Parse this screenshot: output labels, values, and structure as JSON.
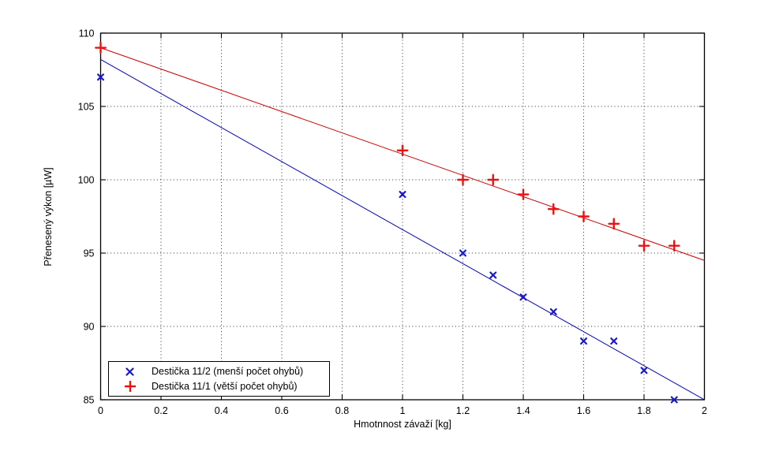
{
  "chart_data": {
    "type": "scatter",
    "title": "",
    "xlabel": "Hmotnnost závaží [kg]",
    "ylabel": "Přenesený výkon [µW]",
    "xlim": [
      0,
      2
    ],
    "ylim": [
      85,
      110
    ],
    "xticks": [
      0,
      0.2,
      0.4,
      0.6,
      0.8,
      1,
      1.2,
      1.4,
      1.6,
      1.8,
      2
    ],
    "xtick_labels": [
      "0",
      "0.2",
      "0.4",
      "0.6",
      "0.8",
      "1",
      "1.2",
      "1.4",
      "1.6",
      "1.8",
      "2"
    ],
    "yticks": [
      85,
      90,
      95,
      100,
      105,
      110
    ],
    "ytick_labels": [
      "85",
      "90",
      "95",
      "100",
      "105",
      "110"
    ],
    "grid": true,
    "grid_style": "dotted",
    "grid_color": "#2b2b2b",
    "axis_color": "#000000",
    "legend_position": "bottom-left",
    "series": [
      {
        "name": "Destička 11/2 (menší počet ohybů)",
        "marker": "x",
        "color": "#1a1acc",
        "line_color": "#0000bb",
        "x": [
          0,
          1,
          1.2,
          1.3,
          1.4,
          1.5,
          1.6,
          1.7,
          1.8,
          1.9
        ],
        "y": [
          107,
          99,
          95,
          93.5,
          92,
          91,
          89,
          89,
          87,
          85
        ],
        "fit_line": {
          "x": [
            0,
            2
          ],
          "y": [
            108.2,
            85
          ]
        }
      },
      {
        "name": "Destička 11/1 (větší počet ohybů)",
        "marker": "+",
        "color": "#ee1111",
        "line_color": "#cc0000",
        "x": [
          0,
          1,
          1.2,
          1.3,
          1.4,
          1.5,
          1.6,
          1.7,
          1.8,
          1.9
        ],
        "y": [
          109,
          102,
          100,
          100,
          99,
          98,
          97.5,
          97,
          95.5,
          95.5
        ],
        "fit_line": {
          "x": [
            0,
            2
          ],
          "y": [
            109,
            94.5
          ]
        }
      }
    ]
  }
}
